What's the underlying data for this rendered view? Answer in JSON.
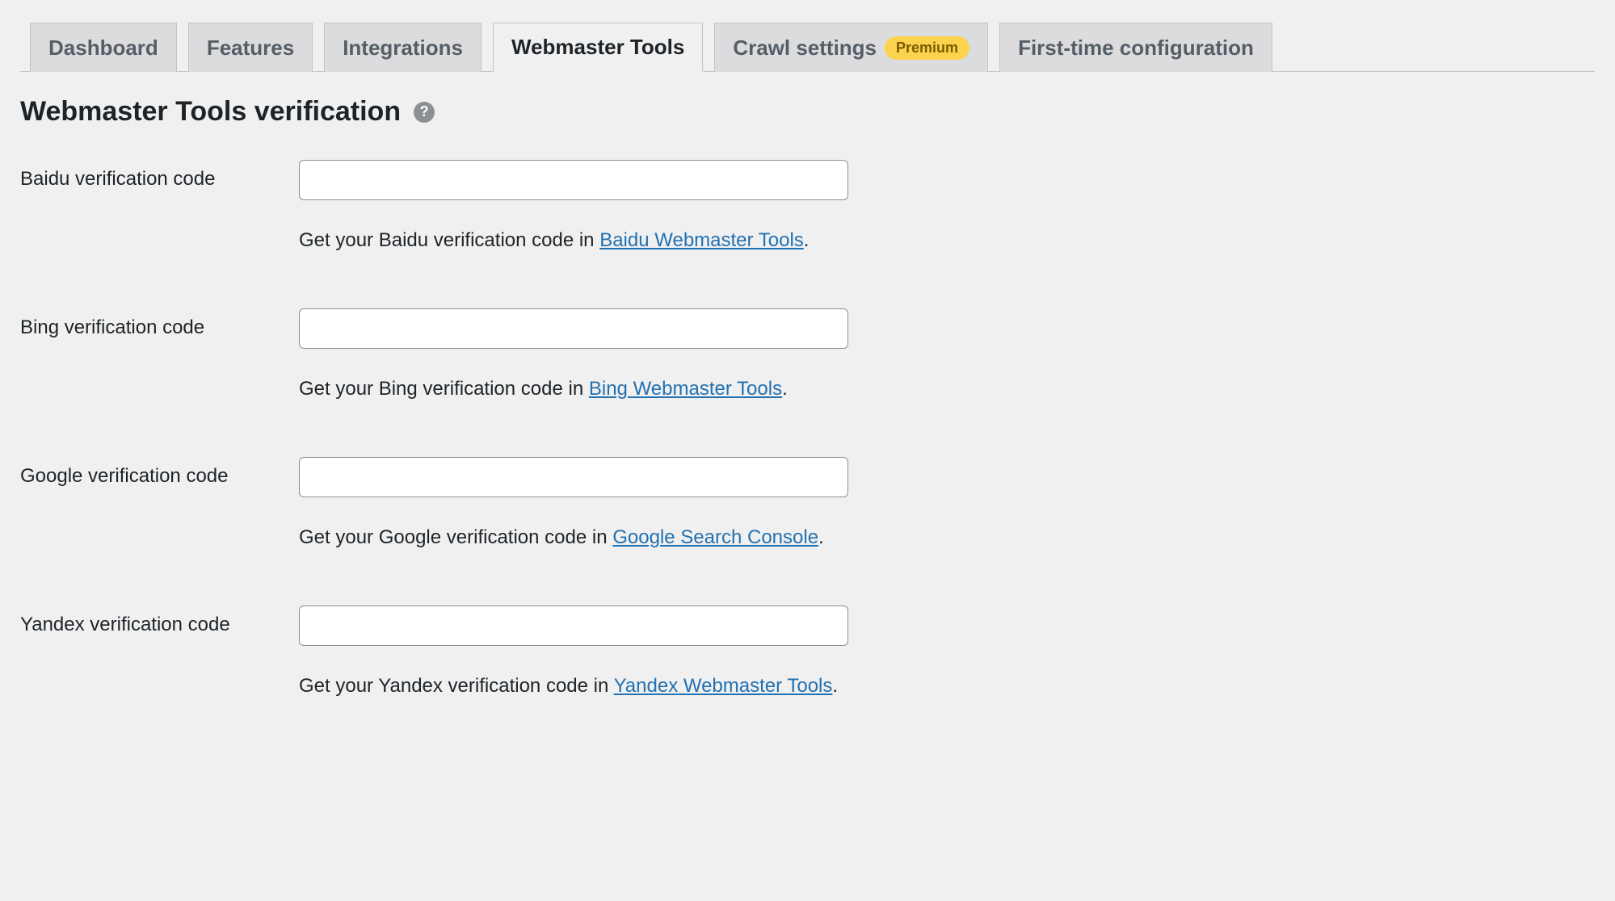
{
  "tabs": [
    {
      "label": "Dashboard",
      "active": false,
      "premium": false
    },
    {
      "label": "Features",
      "active": false,
      "premium": false
    },
    {
      "label": "Integrations",
      "active": false,
      "premium": false
    },
    {
      "label": "Webmaster Tools",
      "active": true,
      "premium": false
    },
    {
      "label": "Crawl settings",
      "active": false,
      "premium": true
    },
    {
      "label": "First-time configuration",
      "active": false,
      "premium": false
    }
  ],
  "premium_badge": "Premium",
  "section_title": "Webmaster Tools verification",
  "help_icon": "?",
  "fields": {
    "baidu": {
      "label": "Baidu verification code",
      "value": "",
      "help_prefix": "Get your Baidu verification code in ",
      "link_text": "Baidu Webmaster Tools",
      "help_suffix": "."
    },
    "bing": {
      "label": "Bing verification code",
      "value": "",
      "help_prefix": "Get your Bing verification code in ",
      "link_text": "Bing Webmaster Tools",
      "help_suffix": "."
    },
    "google": {
      "label": "Google verification code",
      "value": "",
      "help_prefix": "Get your Google verification code in ",
      "link_text": "Google Search Console",
      "help_suffix": "."
    },
    "yandex": {
      "label": "Yandex verification code",
      "value": "",
      "help_prefix": "Get your Yandex verification code in ",
      "link_text": "Yandex Webmaster Tools",
      "help_suffix": "."
    }
  },
  "colors": {
    "background": "#f0f0f1",
    "tab_inactive_bg": "#dcdcde",
    "tab_border": "#c3c4c7",
    "tab_text_inactive": "#555d66",
    "tab_text_active": "#1d2327",
    "premium_bg": "#fcd34d",
    "premium_text": "#7a5c00",
    "link": "#2271b1",
    "help_icon_bg": "#8c8f94",
    "input_border": "#8c8f94"
  }
}
